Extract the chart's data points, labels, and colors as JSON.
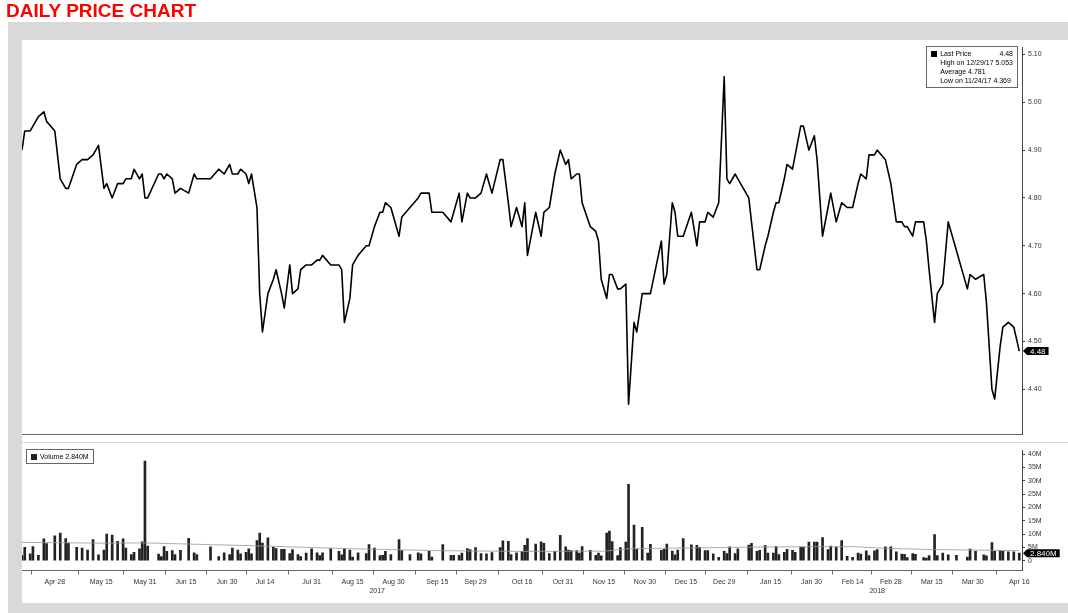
{
  "chart_data": [
    {
      "type": "line",
      "title": "DAILY PRICE CHART",
      "legend": "top right",
      "tick_labels": "y",
      "xlim": [
        "2017-04-16",
        "2018-04-17"
      ],
      "ylim": [
        4.305,
        5.115
      ],
      "yticks": [
        {
          "value": 4.4,
          "label": "4.40"
        },
        {
          "value": 4.5,
          "label": "4.50"
        },
        {
          "value": 4.6,
          "label": "4.60"
        },
        {
          "value": 4.7,
          "label": "4.70"
        },
        {
          "value": 4.8,
          "label": "4.80"
        },
        {
          "value": 4.9,
          "label": "4.90"
        },
        {
          "value": 5.0,
          "label": "5.00"
        },
        {
          "value": 5.1,
          "label": "5.10"
        }
      ],
      "x": [
        "2017-04-16",
        "2017-04-17",
        "2017-04-19",
        "2017-04-20",
        "2017-04-22",
        "2017-04-24",
        "2017-04-25",
        "2017-04-28",
        "2017-04-30",
        "2017-05-02",
        "2017-05-03",
        "2017-05-06",
        "2017-05-08",
        "2017-05-10",
        "2017-05-12",
        "2017-05-14",
        "2017-05-16",
        "2017-05-17",
        "2017-05-19",
        "2017-05-21",
        "2017-05-23",
        "2017-05-24",
        "2017-05-26",
        "2017-05-27",
        "2017-05-29",
        "2017-05-30",
        "2017-05-31",
        "2017-06-01",
        "2017-06-05",
        "2017-06-06",
        "2017-06-07",
        "2017-06-08",
        "2017-06-10",
        "2017-06-11",
        "2017-06-13",
        "2017-06-16",
        "2017-06-18",
        "2017-06-19",
        "2017-06-24",
        "2017-06-27",
        "2017-06-29",
        "2017-07-01",
        "2017-07-02",
        "2017-07-04",
        "2017-07-05",
        "2017-07-07",
        "2017-07-08",
        "2017-07-09",
        "2017-07-11",
        "2017-07-12",
        "2017-07-13",
        "2017-07-15",
        "2017-07-17",
        "2017-07-18",
        "2017-07-20",
        "2017-07-21",
        "2017-07-23",
        "2017-07-24",
        "2017-07-26",
        "2017-07-27",
        "2017-07-29",
        "2017-07-31",
        "2017-08-02",
        "2017-08-03",
        "2017-08-04",
        "2017-08-07",
        "2017-08-10",
        "2017-08-11",
        "2017-08-12",
        "2017-08-14",
        "2017-08-15",
        "2017-08-17",
        "2017-08-20",
        "2017-08-21",
        "2017-08-23",
        "2017-08-25",
        "2017-08-26",
        "2017-08-27",
        "2017-08-29",
        "2017-09-01",
        "2017-09-02",
        "2017-09-05",
        "2017-09-08",
        "2017-09-09",
        "2017-09-12",
        "2017-09-13",
        "2017-09-17",
        "2017-09-20",
        "2017-09-21",
        "2017-09-23",
        "2017-09-24",
        "2017-09-26",
        "2017-09-27",
        "2017-09-29",
        "2017-10-01",
        "2017-10-03",
        "2017-10-05",
        "2017-10-08",
        "2017-10-09",
        "2017-10-11",
        "2017-10-12",
        "2017-10-14",
        "2017-10-16",
        "2017-10-17",
        "2017-10-18",
        "2017-10-21",
        "2017-10-23",
        "2017-10-24",
        "2017-10-26",
        "2017-10-28",
        "2017-10-30",
        "2017-11-01",
        "2017-11-02",
        "2017-11-03",
        "2017-11-05",
        "2017-11-06",
        "2017-11-07",
        "2017-11-10",
        "2017-11-12",
        "2017-11-13",
        "2017-11-14",
        "2017-11-16",
        "2017-11-17",
        "2017-11-18",
        "2017-11-20",
        "2017-11-21",
        "2017-11-23",
        "2017-11-24",
        "2017-11-26",
        "2017-11-27",
        "2017-11-29",
        "2017-12-01",
        "2017-12-02",
        "2017-12-06",
        "2017-12-07",
        "2017-12-08",
        "2017-12-10",
        "2017-12-11",
        "2017-12-12",
        "2017-12-14",
        "2017-12-17",
        "2017-12-19",
        "2017-12-20",
        "2017-12-22",
        "2017-12-23",
        "2017-12-25",
        "2017-12-27",
        "2017-12-29",
        "2017-12-30",
        "2017-12-31",
        "2018-01-02",
        "2018-01-03",
        "2018-01-07",
        "2018-01-08",
        "2018-01-10",
        "2018-01-11",
        "2018-01-13",
        "2018-01-14",
        "2018-01-16",
        "2018-01-17",
        "2018-01-18",
        "2018-01-20",
        "2018-01-21",
        "2018-01-23",
        "2018-01-24",
        "2018-01-26",
        "2018-01-27",
        "2018-01-29",
        "2018-01-31",
        "2018-02-01",
        "2018-02-03",
        "2018-02-05",
        "2018-02-06",
        "2018-02-08",
        "2018-02-10",
        "2018-02-12",
        "2018-02-14",
        "2018-02-16",
        "2018-02-17",
        "2018-02-19",
        "2018-02-20",
        "2018-02-22",
        "2018-02-23",
        "2018-02-26",
        "2018-02-28",
        "2018-03-02",
        "2018-03-04",
        "2018-03-05",
        "2018-03-06",
        "2018-03-08",
        "2018-03-09",
        "2018-03-12",
        "2018-03-13",
        "2018-03-14",
        "2018-03-16",
        "2018-03-17",
        "2018-03-19",
        "2018-03-21",
        "2018-03-24",
        "2018-03-28",
        "2018-03-29",
        "2018-03-31",
        "2018-04-03",
        "2018-04-04",
        "2018-04-06",
        "2018-04-07",
        "2018-04-09",
        "2018-04-10",
        "2018-04-12",
        "2018-04-14",
        "2018-04-16"
      ],
      "series": [
        {
          "name": "Last Price",
          "color": "#000000",
          "values": [
            4.9,
            4.94,
            4.94,
            4.95,
            4.97,
            4.98,
            4.96,
            4.94,
            4.84,
            4.82,
            4.82,
            4.87,
            4.88,
            4.88,
            4.89,
            4.91,
            4.82,
            4.83,
            4.8,
            4.83,
            4.83,
            4.84,
            4.84,
            4.86,
            4.84,
            4.85,
            4.8,
            4.8,
            4.85,
            4.85,
            4.84,
            4.85,
            4.84,
            4.81,
            4.82,
            4.81,
            4.85,
            4.84,
            4.84,
            4.86,
            4.85,
            4.87,
            4.85,
            4.85,
            4.86,
            4.85,
            4.83,
            4.85,
            4.78,
            4.6,
            4.52,
            4.6,
            4.63,
            4.65,
            4.6,
            4.57,
            4.66,
            4.6,
            4.61,
            4.65,
            4.66,
            4.66,
            4.67,
            4.67,
            4.68,
            4.66,
            4.66,
            4.65,
            4.54,
            4.59,
            4.66,
            4.68,
            4.7,
            4.7,
            4.74,
            4.77,
            4.77,
            4.79,
            4.78,
            4.72,
            4.76,
            4.78,
            4.8,
            4.81,
            4.81,
            4.77,
            4.77,
            4.75,
            4.77,
            4.81,
            4.75,
            4.81,
            4.8,
            4.8,
            4.81,
            4.85,
            4.81,
            4.88,
            4.88,
            4.79,
            4.74,
            4.78,
            4.74,
            4.79,
            4.68,
            4.77,
            4.72,
            4.77,
            4.78,
            4.85,
            4.9,
            4.87,
            4.88,
            4.84,
            4.85,
            4.85,
            4.79,
            4.74,
            4.73,
            4.71,
            4.63,
            4.59,
            4.64,
            4.64,
            4.61,
            4.61,
            4.62,
            4.369,
            4.54,
            4.52,
            4.6,
            4.6,
            4.6,
            4.71,
            4.62,
            4.64,
            4.79,
            4.77,
            4.72,
            4.72,
            4.77,
            4.7,
            4.75,
            4.75,
            4.77,
            4.76,
            4.79,
            5.053,
            4.84,
            4.83,
            4.85,
            4.84,
            4.8,
            4.75,
            4.65,
            4.65,
            4.7,
            4.72,
            4.77,
            4.79,
            4.79,
            4.84,
            4.87,
            4.86,
            4.89,
            4.95,
            4.95,
            4.9,
            4.93,
            4.88,
            4.72,
            4.78,
            4.81,
            4.75,
            4.79,
            4.78,
            4.78,
            4.83,
            4.85,
            4.84,
            4.89,
            4.89,
            4.9,
            4.88,
            4.83,
            4.75,
            4.75,
            4.74,
            4.74,
            4.72,
            4.75,
            4.75,
            4.71,
            4.65,
            4.54,
            4.6,
            4.62,
            4.75,
            4.69,
            4.61,
            4.64,
            4.63,
            4.64,
            4.58,
            4.4,
            4.38,
            4.49,
            4.53,
            4.54,
            4.53,
            4.48
          ]
        }
      ],
      "annotations": [
        "4.48",
        "High on 12/29/17 5.053",
        "Average 4.781",
        "Low on 11/24/17 4.369",
        {
          "text": "4.48",
          "x": "2018-04-16",
          "y": 4.48
        }
      ]
    },
    {
      "type": "bar",
      "legend": "top left",
      "xlim": [
        "2017-04-16",
        "2018-04-17"
      ],
      "ylim": [
        -3.7,
        41.5
      ],
      "xticks": [
        {
          "value": "2017-04-28",
          "label": "Apr 28"
        },
        {
          "value": "2017-05-15",
          "label": "May 15"
        },
        {
          "value": "2017-05-31",
          "label": "May 31"
        },
        {
          "value": "2017-06-15",
          "label": "Jun 15"
        },
        {
          "value": "2017-06-30",
          "label": "Jun 30"
        },
        {
          "value": "2017-07-14",
          "label": "Jul 14"
        },
        {
          "value": "2017-07-31",
          "label": "Jul 31"
        },
        {
          "value": "2017-08-15",
          "label": "Aug 15"
        },
        {
          "value": "2017-08-30",
          "label": "Aug 30"
        },
        {
          "value": "2017-09-15",
          "label": "Sep 15"
        },
        {
          "value": "2017-09-29",
          "label": "Sep 29"
        },
        {
          "value": "2017-10-16",
          "label": "Oct 16"
        },
        {
          "value": "2017-10-31",
          "label": "Oct 31"
        },
        {
          "value": "2017-11-15",
          "label": "Nov 15"
        },
        {
          "value": "2017-11-30",
          "label": "Nov 30"
        },
        {
          "value": "2017-12-15",
          "label": "Dec 15"
        },
        {
          "value": "2017-12-29",
          "label": "Dec 29"
        },
        {
          "value": "2018-01-15",
          "label": "Jan 15"
        },
        {
          "value": "2018-01-30",
          "label": "Jan 30"
        },
        {
          "value": "2018-02-14",
          "label": "Feb 14"
        },
        {
          "value": "2018-02-28",
          "label": "Feb 28"
        },
        {
          "value": "2018-03-15",
          "label": "Mar 15"
        },
        {
          "value": "2018-03-30",
          "label": "Mar 30"
        },
        {
          "value": "2018-04-16",
          "label": "Apr 16"
        }
      ],
      "yticks": [
        0,
        {
          "value": 5,
          "label": "5M"
        },
        {
          "value": 10,
          "label": "10M"
        },
        {
          "value": 15,
          "label": "15M"
        },
        {
          "value": 20,
          "label": "20M"
        },
        {
          "value": 25,
          "label": "25M"
        },
        {
          "value": 30,
          "label": "30M"
        },
        {
          "value": 35,
          "label": "35M"
        },
        {
          "value": 40,
          "label": "40M"
        }
      ],
      "x": [
        "2017-04-16",
        "2017-04-17",
        "2017-04-19",
        "2017-04-20",
        "2017-04-22",
        "2017-04-24",
        "2017-04-25",
        "2017-04-28",
        "2017-04-30",
        "2017-05-02",
        "2017-05-03",
        "2017-05-06",
        "2017-05-08",
        "2017-05-10",
        "2017-05-12",
        "2017-05-14",
        "2017-05-16",
        "2017-05-17",
        "2017-05-19",
        "2017-05-21",
        "2017-05-23",
        "2017-05-24",
        "2017-05-26",
        "2017-05-27",
        "2017-05-29",
        "2017-05-30",
        "2017-05-31",
        "2017-06-01",
        "2017-06-05",
        "2017-06-06",
        "2017-06-07",
        "2017-06-08",
        "2017-06-10",
        "2017-06-11",
        "2017-06-13",
        "2017-06-16",
        "2017-06-18",
        "2017-06-19",
        "2017-06-24",
        "2017-06-27",
        "2017-06-29",
        "2017-07-01",
        "2017-07-02",
        "2017-07-04",
        "2017-07-05",
        "2017-07-07",
        "2017-07-08",
        "2017-07-09",
        "2017-07-11",
        "2017-07-12",
        "2017-07-13",
        "2017-07-15",
        "2017-07-17",
        "2017-07-18",
        "2017-07-20",
        "2017-07-21",
        "2017-07-23",
        "2017-07-24",
        "2017-07-26",
        "2017-07-27",
        "2017-07-29",
        "2017-07-31",
        "2017-08-02",
        "2017-08-03",
        "2017-08-04",
        "2017-08-07",
        "2017-08-10",
        "2017-08-11",
        "2017-08-12",
        "2017-08-14",
        "2017-08-15",
        "2017-08-17",
        "2017-08-20",
        "2017-08-21",
        "2017-08-23",
        "2017-08-25",
        "2017-08-26",
        "2017-08-27",
        "2017-08-29",
        "2017-09-01",
        "2017-09-02",
        "2017-09-05",
        "2017-09-08",
        "2017-09-09",
        "2017-09-12",
        "2017-09-13",
        "2017-09-17",
        "2017-09-20",
        "2017-09-21",
        "2017-09-23",
        "2017-09-24",
        "2017-09-26",
        "2017-09-27",
        "2017-09-29",
        "2017-10-01",
        "2017-10-03",
        "2017-10-05",
        "2017-10-08",
        "2017-10-09",
        "2017-10-11",
        "2017-10-12",
        "2017-10-14",
        "2017-10-16",
        "2017-10-17",
        "2017-10-18",
        "2017-10-21",
        "2017-10-23",
        "2017-10-24",
        "2017-10-26",
        "2017-10-28",
        "2017-10-30",
        "2017-11-01",
        "2017-11-02",
        "2017-11-03",
        "2017-11-05",
        "2017-11-06",
        "2017-11-07",
        "2017-11-10",
        "2017-11-12",
        "2017-11-13",
        "2017-11-14",
        "2017-11-16",
        "2017-11-17",
        "2017-11-18",
        "2017-11-20",
        "2017-11-21",
        "2017-11-23",
        "2017-11-24",
        "2017-11-26",
        "2017-11-27",
        "2017-11-29",
        "2017-12-01",
        "2017-12-02",
        "2017-12-06",
        "2017-12-07",
        "2017-12-08",
        "2017-12-10",
        "2017-12-11",
        "2017-12-12",
        "2017-12-14",
        "2017-12-17",
        "2017-12-19",
        "2017-12-20",
        "2017-12-22",
        "2017-12-23",
        "2017-12-25",
        "2017-12-27",
        "2017-12-29",
        "2017-12-30",
        "2017-12-31",
        "2018-01-02",
        "2018-01-03",
        "2018-01-07",
        "2018-01-08",
        "2018-01-10",
        "2018-01-11",
        "2018-01-13",
        "2018-01-14",
        "2018-01-16",
        "2018-01-17",
        "2018-01-18",
        "2018-01-20",
        "2018-01-21",
        "2018-01-23",
        "2018-01-24",
        "2018-01-26",
        "2018-01-27",
        "2018-01-29",
        "2018-01-31",
        "2018-02-01",
        "2018-02-03",
        "2018-02-05",
        "2018-02-06",
        "2018-02-08",
        "2018-02-10",
        "2018-02-12",
        "2018-02-14",
        "2018-02-16",
        "2018-02-17",
        "2018-02-19",
        "2018-02-20",
        "2018-02-22",
        "2018-02-23",
        "2018-02-26",
        "2018-02-28",
        "2018-03-02",
        "2018-03-04",
        "2018-03-05",
        "2018-03-06",
        "2018-03-08",
        "2018-03-09",
        "2018-03-12",
        "2018-03-13",
        "2018-03-14",
        "2018-03-16",
        "2018-03-17",
        "2018-03-19",
        "2018-03-21",
        "2018-03-24",
        "2018-03-28",
        "2018-03-29",
        "2018-03-31",
        "2018-04-03",
        "2018-04-04",
        "2018-04-06",
        "2018-04-07",
        "2018-04-09",
        "2018-04-10",
        "2018-04-12",
        "2018-04-14",
        "2018-04-16"
      ],
      "series": [
        {
          "name": "Volume 2.840M",
          "color": "#222222",
          "values": [
            2.0,
            5.0,
            2.6,
            5.3,
            2.0,
            8.2,
            6.4,
            9.4,
            10.4,
            8.3,
            6.6,
            5.0,
            4.8,
            4.0,
            7.9,
            2.2,
            4.0,
            10.0,
            9.6,
            7.3,
            8.2,
            4.8,
            2.3,
            3.2,
            4.5,
            7.1,
            37.4,
            5.5,
            2.5,
            1.6,
            5.3,
            3.5,
            3.8,
            2.3,
            3.9,
            8.4,
            3.0,
            2.3,
            5.2,
            1.6,
            3.0,
            2.3,
            4.8,
            4.0,
            2.6,
            3.2,
            4.5,
            2.6,
            7.6,
            10.4,
            6.6,
            8.6,
            5.0,
            4.6,
            4.3,
            4.3,
            2.7,
            4.2,
            2.3,
            1.6,
            2.9,
            4.5,
            3.0,
            1.9,
            3.0,
            4.6,
            3.5,
            2.2,
            4.5,
            4.0,
            1.4,
            3.0,
            2.7,
            6.1,
            4.8,
            1.9,
            2.0,
            3.5,
            2.3,
            7.9,
            3.8,
            2.3,
            3.0,
            2.6,
            3.5,
            1.4,
            6.1,
            2.0,
            2.0,
            2.0,
            2.9,
            4.6,
            4.2,
            4.9,
            2.7,
            2.6,
            3.1,
            4.9,
            7.5,
            7.3,
            2.3,
            3.0,
            3.5,
            5.8,
            8.3,
            6.3,
            7.1,
            6.5,
            2.7,
            3.5,
            9.5,
            5.2,
            4.0,
            3.8,
            3.8,
            2.9,
            5.3,
            3.9,
            2.0,
            2.9,
            1.8,
            10.4,
            11.1,
            7.2,
            1.9,
            4.9,
            7.0,
            28.7,
            13.4,
            4.3,
            12.5,
            2.9,
            6.2,
            3.9,
            4.3,
            6.3,
            3.6,
            2.2,
            4.0,
            8.3,
            6.0,
            5.8,
            5.0,
            3.8,
            3.8,
            2.6,
            1.3,
            3.5,
            2.7,
            5.2,
            2.7,
            4.5,
            5.9,
            6.5,
            3.5,
            3.9,
            5.7,
            2.9,
            2.9,
            5.3,
            2.3,
            3.2,
            4.3,
            3.9,
            3.2,
            5.1,
            5.1,
            7.0,
            7.0,
            7.0,
            8.7,
            4.2,
            5.5,
            5.1,
            7.6,
            1.7,
            1.3,
            2.9,
            2.5,
            3.7,
            1.9,
            3.7,
            4.2,
            5.2,
            5.2,
            3.3,
            2.5,
            2.4,
            1.2,
            2.7,
            2.4,
            1.2,
            1.0,
            1.9,
            9.8,
            1.9,
            2.9,
            2.2,
            2.0,
            1.4,
            4.4,
            3.5,
            2.2,
            1.8,
            6.8,
            3.5,
            3.8,
            3.5,
            3.3,
            3.3,
            2.84
          ]
        },
        {
          "type": "line",
          "color": "#999999",
          "x": [
            "2017-04-16",
            "2017-05-15",
            "2017-05-31",
            "2017-07-14",
            "2017-08-15",
            "2017-09-15",
            "2017-10-16",
            "2017-11-15",
            "2017-11-24",
            "2017-12-15",
            "2018-01-15",
            "2018-02-14",
            "2018-02-28",
            "2018-03-15",
            "2018-04-16"
          ],
          "values": [
            6.9,
            6.6,
            6.7,
            5.5,
            4.5,
            3.8,
            3.5,
            3.6,
            4.5,
            4.8,
            5.2,
            5.3,
            4.6,
            4.2,
            3.8
          ]
        }
      ],
      "annotations": [
        {
          "text": "2.840M",
          "x": "2018-04-16",
          "y": 2.84
        },
        "2017",
        "2018"
      ]
    }
  ]
}
